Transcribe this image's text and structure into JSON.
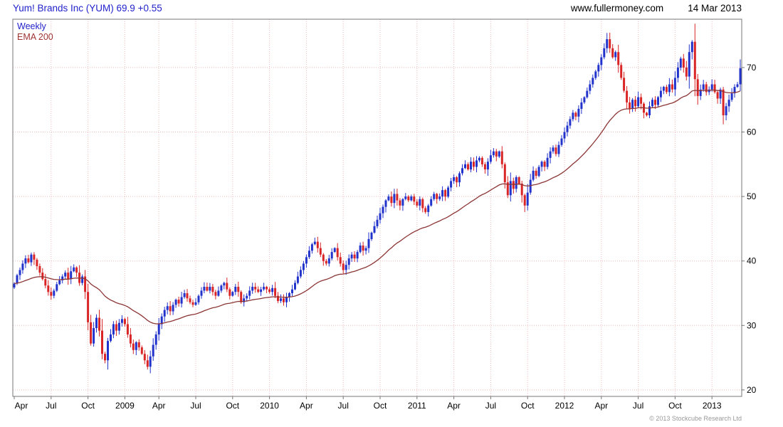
{
  "header": {
    "title": "Yum! Brands Inc (YUM) 69.9 +0.55",
    "site": "www.fullermoney.com",
    "date": "14 Mar 2013"
  },
  "legend": {
    "timeframe": "Weekly",
    "overlay": "EMA 200"
  },
  "footer": {
    "copyright": "© 2013 Stockcube Research Ltd"
  },
  "chart_data": {
    "type": "candlestick",
    "title": "Yum! Brands Inc (YUM)",
    "last_price": 69.9,
    "change": "+0.55",
    "timeframe": "Weekly",
    "grid": true,
    "legend_position": "top-left",
    "overlay": {
      "name": "EMA 200",
      "period_weeks": 40,
      "color": "#8b3535"
    },
    "ylim": [
      19,
      77.5
    ],
    "y_ticks": [
      20,
      30,
      40,
      50,
      60,
      70
    ],
    "x_ticks": [
      {
        "label": "Apr",
        "week": 0
      },
      {
        "label": "Jul",
        "week": 13
      },
      {
        "label": "Oct",
        "week": 26
      },
      {
        "label": "2009",
        "week": 39
      },
      {
        "label": "Apr",
        "week": 51
      },
      {
        "label": "Jul",
        "week": 64
      },
      {
        "label": "Oct",
        "week": 77
      },
      {
        "label": "2010",
        "week": 90
      },
      {
        "label": "Apr",
        "week": 103
      },
      {
        "label": "Jul",
        "week": 116
      },
      {
        "label": "Oct",
        "week": 129
      },
      {
        "label": "2011",
        "week": 142
      },
      {
        "label": "Apr",
        "week": 155
      },
      {
        "label": "Jul",
        "week": 168
      },
      {
        "label": "Oct",
        "week": 181
      },
      {
        "label": "2012",
        "week": 194
      },
      {
        "label": "Apr",
        "week": 207
      },
      {
        "label": "Jul",
        "week": 220
      },
      {
        "label": "Oct",
        "week": 233
      },
      {
        "label": "2013",
        "week": 246
      }
    ],
    "weekly_closes": [
      36.5,
      37.8,
      38.6,
      39.6,
      40.4,
      39.8,
      41.0,
      40.2,
      39.2,
      38.2,
      37.2,
      36.2,
      35.2,
      34.6,
      35.4,
      36.4,
      37.0,
      37.6,
      38.2,
      37.2,
      38.4,
      39.0,
      38.2,
      36.6,
      37.6,
      35.2,
      30.5,
      27.2,
      29.6,
      31.2,
      29.2,
      25.6,
      24.6,
      27.6,
      28.6,
      30.2,
      29.2,
      30.4,
      31.0,
      30.2,
      28.6,
      27.2,
      26.2,
      27.4,
      26.6,
      25.6,
      24.6,
      23.6,
      25.2,
      27.0,
      28.6,
      30.2,
      31.4,
      32.4,
      33.0,
      32.2,
      33.2,
      34.0,
      33.4,
      34.4,
      35.0,
      34.2,
      33.6,
      33.2,
      33.6,
      34.6,
      35.4,
      36.0,
      35.4,
      36.0,
      35.2,
      34.6,
      35.4,
      36.2,
      36.6,
      35.6,
      34.6,
      35.2,
      36.0,
      35.2,
      33.6,
      34.2,
      34.6,
      35.4,
      36.0,
      35.6,
      35.2,
      35.6,
      36.0,
      35.6,
      35.2,
      35.8,
      34.6,
      33.8,
      34.2,
      33.6,
      34.4,
      35.0,
      35.6,
      36.6,
      37.6,
      38.6,
      39.6,
      40.6,
      41.6,
      42.6,
      43.0,
      42.0,
      41.0,
      40.0,
      39.6,
      40.4,
      41.4,
      42.0,
      40.6,
      39.6,
      38.6,
      39.4,
      40.4,
      41.0,
      40.4,
      41.4,
      42.4,
      41.6,
      42.0,
      43.4,
      44.4,
      45.4,
      46.4,
      47.4,
      48.4,
      49.4,
      50.0,
      49.0,
      50.4,
      49.4,
      48.6,
      49.6,
      50.0,
      49.4,
      50.0,
      49.2,
      48.6,
      49.6,
      48.2,
      47.6,
      48.6,
      49.6,
      50.4,
      49.6,
      50.0,
      51.0,
      50.0,
      51.4,
      52.4,
      53.0,
      52.2,
      53.6,
      54.4,
      55.0,
      54.2,
      55.4,
      54.6,
      55.6,
      56.0,
      55.0,
      54.2,
      55.4,
      56.4,
      57.0,
      56.2,
      57.0,
      55.0,
      52.2,
      50.2,
      52.4,
      51.2,
      53.0,
      52.0,
      50.2,
      48.6,
      50.6,
      52.6,
      54.0,
      53.2,
      54.6,
      55.4,
      54.6,
      56.0,
      57.0,
      57.6,
      56.6,
      58.0,
      59.0,
      60.0,
      61.0,
      62.0,
      63.0,
      62.4,
      63.6,
      64.6,
      65.4,
      66.4,
      67.4,
      68.4,
      69.4,
      70.4,
      71.6,
      73.0,
      74.4,
      73.0,
      71.6,
      72.4,
      70.4,
      68.4,
      66.4,
      64.6,
      63.6,
      65.0,
      64.0,
      65.4,
      64.4,
      63.0,
      62.6,
      64.0,
      65.0,
      64.2,
      65.4,
      66.4,
      67.0,
      66.2,
      67.4,
      66.6,
      68.4,
      70.0,
      71.4,
      70.0,
      68.6,
      72.4,
      74.0,
      68.2,
      65.6,
      66.6,
      67.4,
      66.2,
      66.6,
      67.4,
      66.2,
      65.2,
      66.6,
      62.6,
      64.0,
      65.0,
      66.0,
      67.0,
      67.4,
      69.9
    ],
    "colors": {
      "up": "#2233cc",
      "down": "#d92525",
      "grid": "#f0bdbd",
      "border": "#777777",
      "title": "#2222cc",
      "legend_overlay": "#a03333",
      "text": "#000000",
      "copyright": "#999999"
    }
  }
}
